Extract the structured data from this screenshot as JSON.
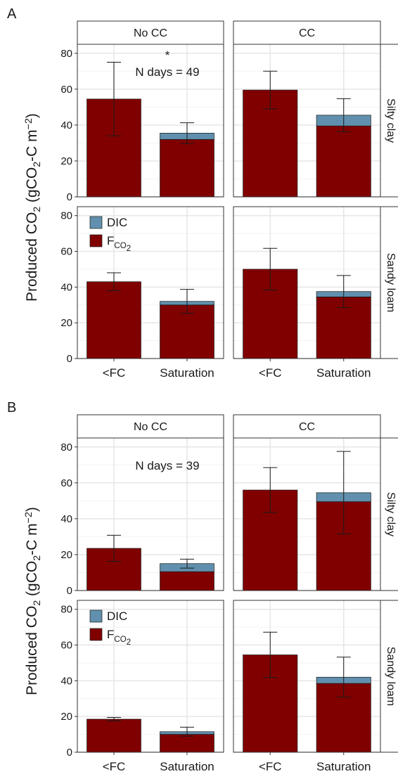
{
  "chart_data": [
    {
      "type": "bar",
      "panel_label": "A",
      "ylabel": [
        {
          "text": "Produced CO"
        },
        {
          "text": "2",
          "shift": "sub"
        },
        {
          "text": " (gCO"
        },
        {
          "text": "2",
          "shift": "sub"
        },
        {
          "text": "-C m"
        },
        {
          "text": "−2",
          "shift": "super"
        },
        {
          "text": ")"
        }
      ],
      "columns": [
        "No CC",
        "CC"
      ],
      "rows": [
        "Silty clay",
        "Sandy loam"
      ],
      "categories": [
        "<FC",
        "Saturation"
      ],
      "ylim": [
        0,
        85
      ],
      "yticks": [
        0,
        20,
        40,
        60,
        80
      ],
      "minor_yticks": [
        10,
        30,
        50,
        70
      ],
      "grid": true,
      "stacked": true,
      "series": [
        {
          "name": [
            {
              "text": "F"
            },
            {
              "text": "CO",
              "shift": "sub"
            },
            {
              "text": "2",
              "shift": "subsub"
            }
          ],
          "color": "#800000"
        },
        {
          "name": [
            {
              "text": "DIC"
            }
          ],
          "color": "#6090ad"
        }
      ],
      "panels": [
        [
          {
            "series": [
              {
                "values": [
                  54.5,
                  32
                ]
              },
              {
                "values": [
                  0,
                  3.5
                ]
              }
            ],
            "errors": [
              20.5,
              5.8
            ],
            "annotations": [
              "*",
              "N days =  49"
            ]
          },
          {
            "series": [
              {
                "values": [
                  59.5,
                  39.5
                ]
              },
              {
                "values": [
                  0,
                  6
                ]
              }
            ],
            "errors": [
              10.5,
              9.2
            ]
          }
        ],
        [
          {
            "series": [
              {
                "values": [
                  43,
                  30
                ]
              },
              {
                "values": [
                  0,
                  2
                ]
              }
            ],
            "errors": [
              5,
              6.7
            ]
          },
          {
            "series": [
              {
                "values": [
                  50,
                  34.5
                ]
              },
              {
                "values": [
                  0,
                  3
                ]
              }
            ],
            "errors": [
              11.7,
              9
            ]
          }
        ]
      ]
    },
    {
      "type": "bar",
      "panel_label": "B",
      "ylabel": [
        {
          "text": "Produced CO"
        },
        {
          "text": "2",
          "shift": "sub"
        },
        {
          "text": " (gCO"
        },
        {
          "text": "2",
          "shift": "sub"
        },
        {
          "text": "-C m"
        },
        {
          "text": "−2",
          "shift": "super"
        },
        {
          "text": ")"
        }
      ],
      "columns": [
        "No CC",
        "CC"
      ],
      "rows": [
        "Silty clay",
        "Sandy loam"
      ],
      "categories": [
        "<FC",
        "Saturation"
      ],
      "ylim": [
        0,
        85
      ],
      "yticks": [
        0,
        20,
        40,
        60,
        80
      ],
      "minor_yticks": [
        10,
        30,
        50,
        70
      ],
      "grid": true,
      "stacked": true,
      "series": [
        {
          "name": [
            {
              "text": "F"
            },
            {
              "text": "CO",
              "shift": "sub"
            },
            {
              "text": "2",
              "shift": "subsub"
            }
          ],
          "color": "#800000"
        },
        {
          "name": [
            {
              "text": "DIC"
            }
          ],
          "color": "#6090ad"
        }
      ],
      "panels": [
        [
          {
            "series": [
              {
                "values": [
                  23.5,
                  10.5
                ]
              },
              {
                "values": [
                  0,
                  4.5
                ]
              }
            ],
            "errors": [
              7.3,
              2.5
            ],
            "annotations": [
              "N days =  39"
            ]
          },
          {
            "series": [
              {
                "values": [
                  56,
                  49.5
                ]
              },
              {
                "values": [
                  0,
                  5
                ]
              }
            ],
            "errors": [
              12.5,
              23
            ]
          }
        ],
        [
          {
            "series": [
              {
                "values": [
                  18.5,
                  10
                ]
              },
              {
                "values": [
                  0,
                  1.5
                ]
              }
            ],
            "errors": [
              1,
              2.5
            ]
          },
          {
            "series": [
              {
                "values": [
                  54.5,
                  38.5
                ]
              },
              {
                "values": [
                  0,
                  3.5
                ]
              }
            ],
            "errors": [
              12.7,
              11.2
            ]
          }
        ]
      ]
    }
  ]
}
